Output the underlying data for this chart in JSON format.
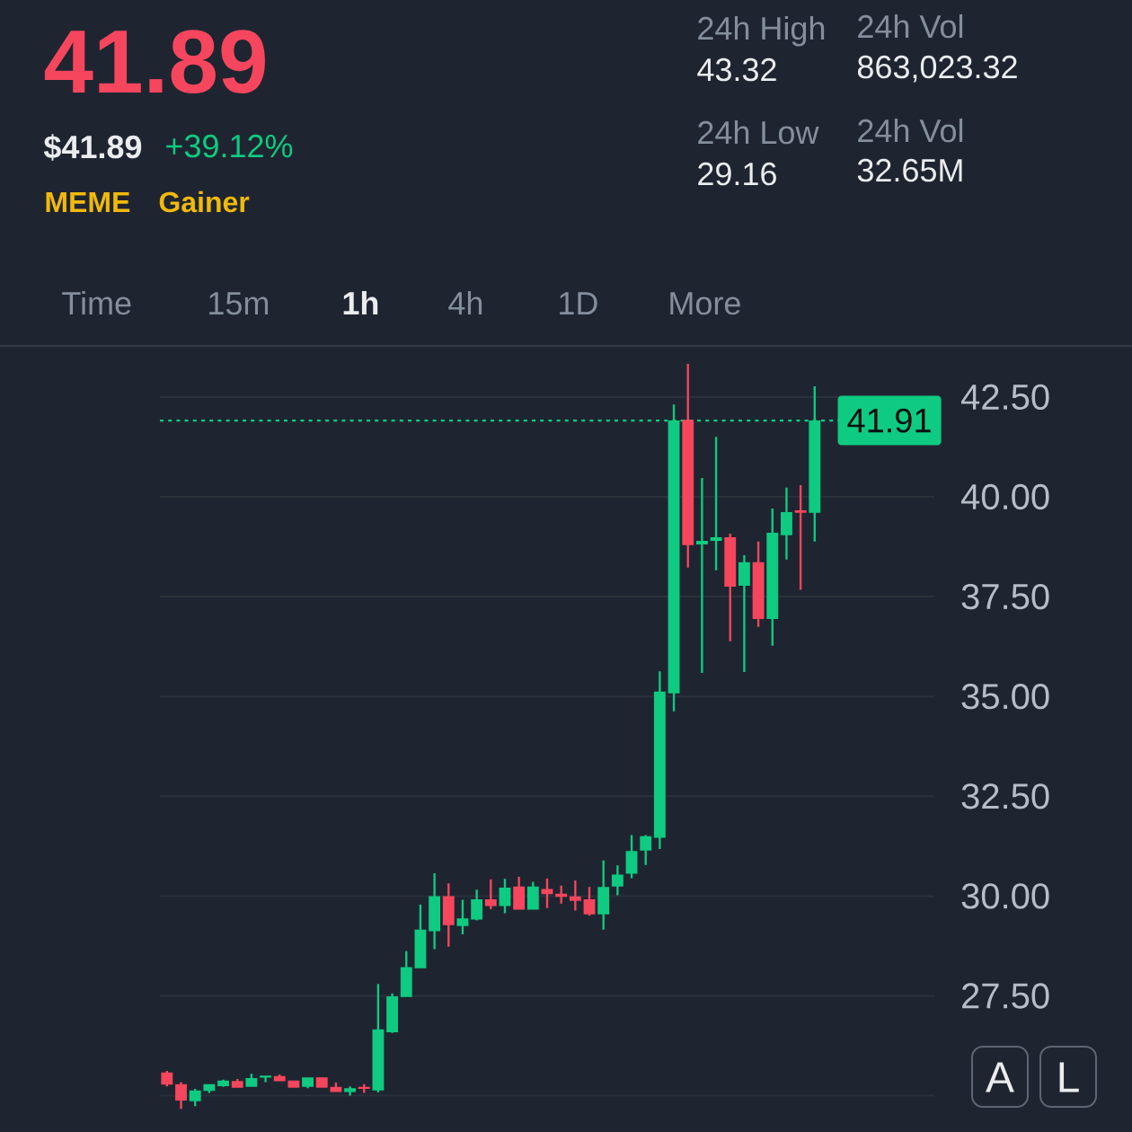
{
  "chart_data": {
    "type": "candlestick",
    "categories": [
      null,
      null,
      null,
      null,
      null,
      null,
      null,
      null,
      null,
      null,
      null,
      null,
      null,
      null,
      null,
      null,
      null,
      null,
      null,
      null,
      null,
      null,
      null,
      null,
      null,
      null,
      null,
      null,
      null,
      null,
      null,
      null,
      null,
      null,
      null,
      null,
      null,
      null,
      null,
      null,
      null,
      null,
      null,
      null,
      null,
      null,
      null,
      null,
      null,
      null,
      null,
      null,
      null,
      null,
      null
    ],
    "ohlc": [
      [
        25.58,
        25.62,
        25.23,
        25.28
      ],
      [
        25.29,
        25.34,
        24.67,
        24.88
      ],
      [
        24.86,
        25.17,
        24.74,
        25.13
      ],
      [
        25.12,
        25.29,
        25.07,
        25.29
      ],
      [
        25.24,
        25.4,
        25.22,
        25.38
      ],
      [
        25.37,
        25.42,
        25.2,
        25.2
      ],
      [
        25.22,
        25.55,
        25.22,
        25.44
      ],
      [
        25.45,
        25.5,
        25.34,
        25.5
      ],
      [
        25.49,
        25.53,
        25.36,
        25.36
      ],
      [
        25.38,
        25.38,
        25.2,
        25.2
      ],
      [
        25.22,
        25.46,
        25.19,
        25.46
      ],
      [
        25.46,
        25.46,
        25.2,
        25.2
      ],
      [
        25.22,
        25.33,
        25.09,
        25.09
      ],
      [
        25.09,
        25.23,
        25.0,
        25.19
      ],
      [
        25.22,
        25.29,
        25.07,
        25.17
      ],
      [
        25.13,
        27.8,
        25.08,
        26.66
      ],
      [
        26.59,
        27.56,
        26.57,
        27.49
      ],
      [
        27.47,
        28.62,
        27.47,
        28.22
      ],
      [
        28.19,
        29.79,
        28.19,
        29.16
      ],
      [
        29.12,
        30.57,
        28.67,
        30.0
      ],
      [
        30.0,
        30.32,
        28.73,
        29.27
      ],
      [
        29.25,
        29.91,
        29.04,
        29.44
      ],
      [
        29.41,
        30.16,
        29.39,
        29.92
      ],
      [
        29.92,
        30.42,
        29.67,
        29.75
      ],
      [
        29.75,
        30.43,
        29.57,
        30.21
      ],
      [
        30.24,
        30.48,
        29.66,
        29.66
      ],
      [
        29.66,
        30.36,
        29.66,
        30.24
      ],
      [
        30.18,
        30.44,
        29.7,
        30.05
      ],
      [
        30.06,
        30.26,
        29.81,
        29.98
      ],
      [
        29.99,
        30.39,
        29.64,
        29.88
      ],
      [
        29.92,
        30.23,
        29.51,
        29.54
      ],
      [
        29.54,
        30.89,
        29.16,
        30.23
      ],
      [
        30.24,
        30.77,
        30.02,
        30.54
      ],
      [
        30.56,
        31.53,
        30.45,
        31.13
      ],
      [
        31.14,
        31.53,
        30.78,
        31.5
      ],
      [
        31.46,
        35.63,
        31.18,
        35.12
      ],
      [
        35.08,
        42.31,
        34.63,
        41.91
      ],
      [
        41.93,
        43.33,
        38.23,
        38.79
      ],
      [
        38.81,
        40.47,
        35.59,
        38.9
      ],
      [
        38.9,
        41.5,
        38.16,
        38.99
      ],
      [
        38.99,
        39.08,
        36.38,
        37.75
      ],
      [
        37.77,
        38.54,
        35.61,
        38.36
      ],
      [
        38.36,
        38.88,
        36.74,
        36.94
      ],
      [
        36.94,
        39.71,
        36.27,
        39.1
      ],
      [
        39.04,
        40.23,
        38.43,
        39.62
      ],
      [
        39.66,
        40.29,
        37.67,
        39.6
      ],
      [
        39.6,
        42.77,
        38.88,
        41.91
      ],
      null,
      null,
      null,
      null,
      null,
      null,
      null,
      null
    ],
    "colors": [
      "#f6465d",
      "#f6465d",
      "#0ecb81",
      "#0ecb81",
      "#0ecb81",
      "#f6465d",
      "#0ecb81",
      "#0ecb81",
      "#f6465d",
      "#f6465d",
      "#0ecb81",
      "#f6465d",
      "#f6465d",
      "#0ecb81",
      "#f6465d",
      "#0ecb81",
      "#0ecb81",
      "#0ecb81",
      "#0ecb81",
      "#0ecb81",
      "#f6465d",
      "#0ecb81",
      "#0ecb81",
      "#f6465d",
      "#0ecb81",
      "#f6465d",
      "#0ecb81",
      "#f6465d",
      "#f6465d",
      "#f6465d",
      "#f6465d",
      "#0ecb81",
      "#0ecb81",
      "#0ecb81",
      "#0ecb81",
      "#0ecb81",
      "#0ecb81",
      "#f6465d",
      "#0ecb81",
      "#0ecb81",
      "#f6465d",
      "#0ecb81",
      "#f6465d",
      "#0ecb81",
      "#0ecb81",
      "#f6465d",
      "#0ecb81",
      null,
      null,
      null,
      null,
      null,
      null,
      null,
      null
    ],
    "ylim": [
      24.09,
      43.78
    ],
    "yticks": [
      {
        "value": 25,
        "label": null
      },
      {
        "value": 27.5,
        "label": "27.50"
      },
      {
        "value": 30,
        "label": "30.00"
      },
      {
        "value": 32.5,
        "label": "32.50"
      },
      {
        "value": 35,
        "label": "35.00"
      },
      {
        "value": 37.5,
        "label": "37.50"
      },
      {
        "value": 40,
        "label": "40.00"
      },
      {
        "value": 42.5,
        "label": "42.50"
      }
    ],
    "grid": "y",
    "tick_labels": "y",
    "ref_lines": [
      {
        "axis": "y",
        "value": 41.91,
        "label": "41.91",
        "color": "#0ecb81",
        "line_style": "dotted"
      }
    ],
    "annotations": [
      "41.89",
      "$41.89",
      "+39.12%",
      "MEME",
      "Gainer",
      "24h High",
      "43.32",
      "24h Vol",
      "863,023.32",
      "24h Low",
      "29.16",
      "24h Vol",
      "32.65M",
      "Time",
      "15m",
      "1h",
      "4h",
      "1D",
      "More",
      "A",
      "L"
    ]
  }
}
